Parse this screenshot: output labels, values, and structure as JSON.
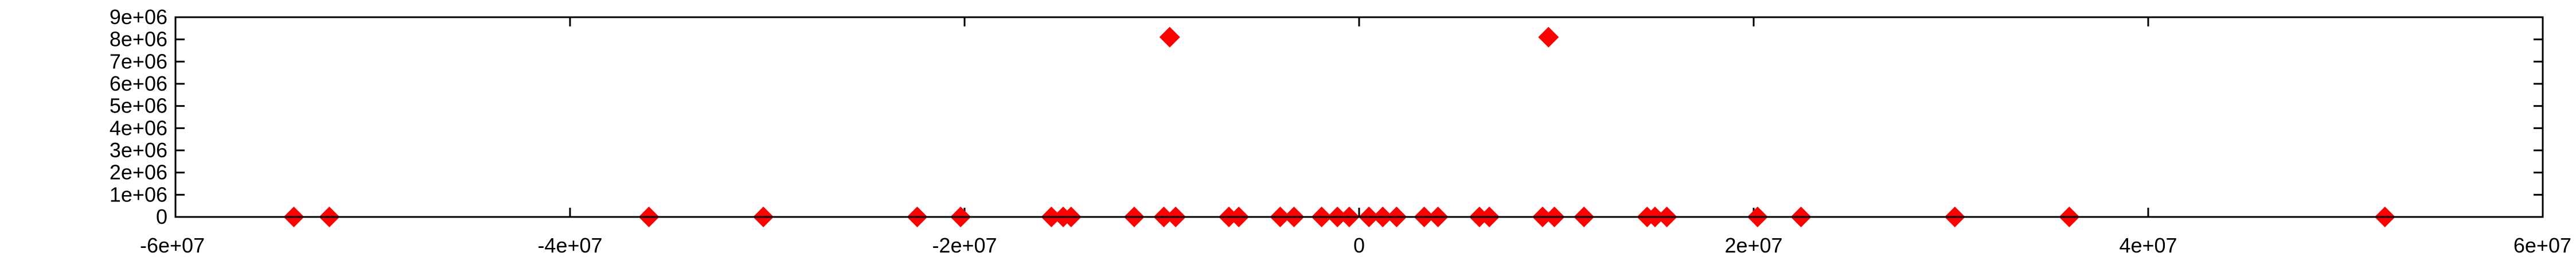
{
  "chart_data": {
    "type": "scatter",
    "title": "",
    "xlabel": "",
    "ylabel": "",
    "xlim": [
      -60000000,
      60000000
    ],
    "ylim": [
      0,
      9000000
    ],
    "x_ticks": [
      "-6e+07",
      "-4e+07",
      "-2e+07",
      "0",
      "2e+07",
      "4e+07",
      "6e+07"
    ],
    "x_tick_values": [
      -60000000,
      -40000000,
      -20000000,
      0,
      20000000,
      40000000,
      60000000
    ],
    "y_ticks": [
      "0",
      "1e+06",
      "2e+06",
      "3e+06",
      "4e+06",
      "5e+06",
      "6e+06",
      "7e+06",
      "8e+06",
      "9e+06"
    ],
    "y_tick_values": [
      0,
      1000000,
      2000000,
      3000000,
      4000000,
      5000000,
      6000000,
      7000000,
      8000000,
      9000000
    ],
    "grid": false,
    "marker": "diamond",
    "marker_color": "#ff0000",
    "series": [
      {
        "points": [
          {
            "x": -54000000,
            "y": 0
          },
          {
            "x": -52200000,
            "y": 0
          },
          {
            "x": -36000000,
            "y": 0
          },
          {
            "x": -30200000,
            "y": 0
          },
          {
            "x": -22400000,
            "y": 0
          },
          {
            "x": -20200000,
            "y": 0
          },
          {
            "x": -15600000,
            "y": 0
          },
          {
            "x": -15000000,
            "y": 0
          },
          {
            "x": -14600000,
            "y": 0
          },
          {
            "x": -11400000,
            "y": 0
          },
          {
            "x": -9900000,
            "y": 0
          },
          {
            "x": -9300000,
            "y": 0
          },
          {
            "x": -6600000,
            "y": 0
          },
          {
            "x": -6100000,
            "y": 0
          },
          {
            "x": -4000000,
            "y": 0
          },
          {
            "x": -3300000,
            "y": 0
          },
          {
            "x": -1900000,
            "y": 0
          },
          {
            "x": -1100000,
            "y": 0
          },
          {
            "x": -500000,
            "y": 0
          },
          {
            "x": 500000,
            "y": 0
          },
          {
            "x": 1200000,
            "y": 0
          },
          {
            "x": 1900000,
            "y": 0
          },
          {
            "x": 3300000,
            "y": 0
          },
          {
            "x": 4000000,
            "y": 0
          },
          {
            "x": 6100000,
            "y": 0
          },
          {
            "x": 6600000,
            "y": 0
          },
          {
            "x": 9300000,
            "y": 0
          },
          {
            "x": 9900000,
            "y": 0
          },
          {
            "x": 11400000,
            "y": 0
          },
          {
            "x": 14600000,
            "y": 0
          },
          {
            "x": 15000000,
            "y": 0
          },
          {
            "x": 15600000,
            "y": 0
          },
          {
            "x": 20200000,
            "y": 0
          },
          {
            "x": 22400000,
            "y": 0
          },
          {
            "x": 30200000,
            "y": 0
          },
          {
            "x": 36000000,
            "y": 0
          },
          {
            "x": 52000000,
            "y": 0
          },
          {
            "x": -9600000,
            "y": 8100000
          },
          {
            "x": 9600000,
            "y": 8100000
          }
        ]
      }
    ]
  }
}
